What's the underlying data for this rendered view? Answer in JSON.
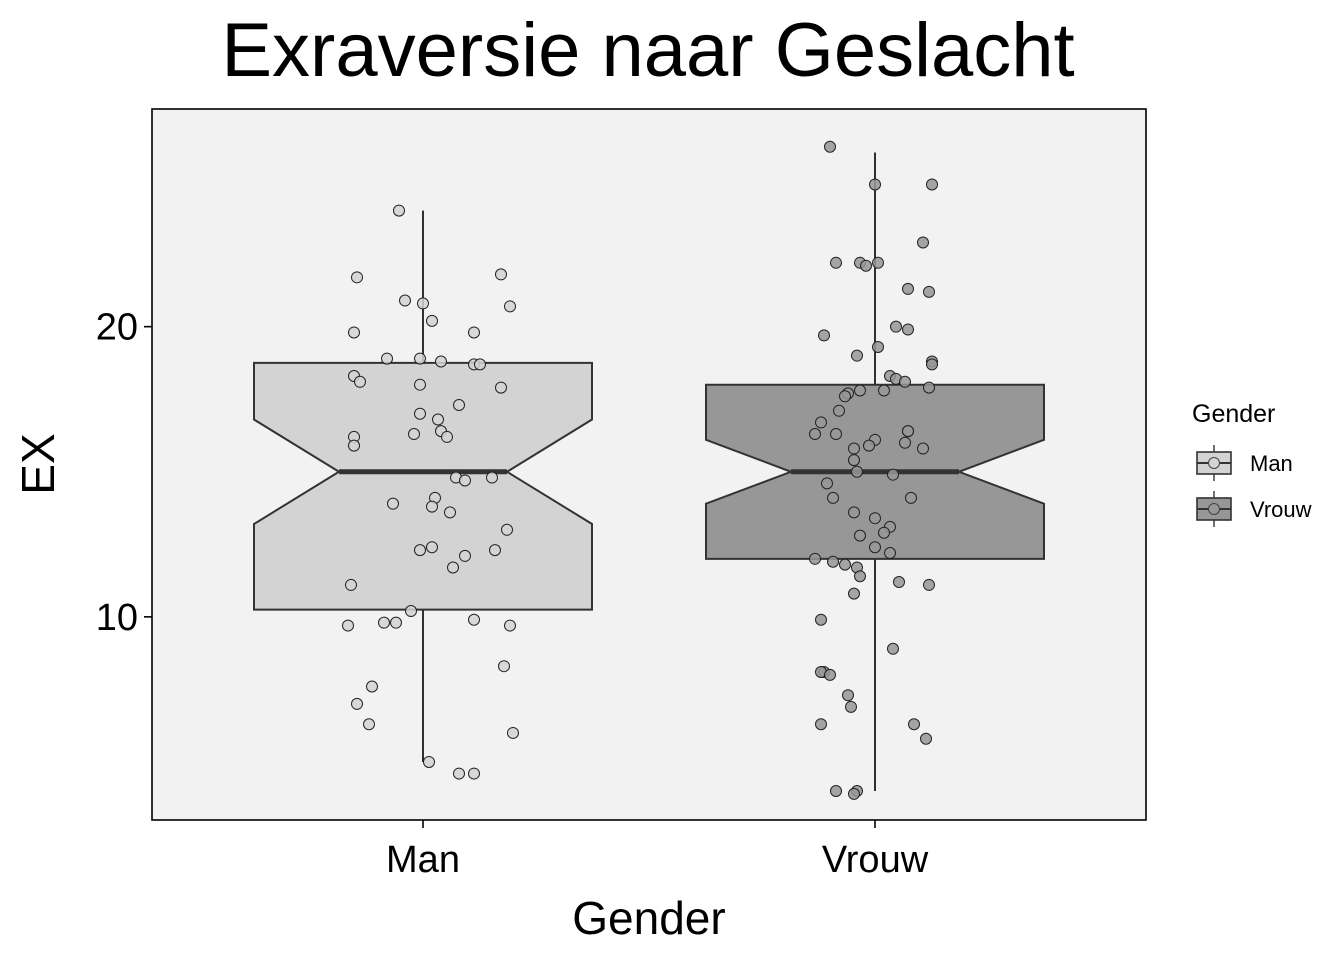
{
  "chart_data": {
    "type": "boxplot",
    "title": "Exraversie naar Geslacht",
    "xlabel": "Gender",
    "ylabel": "EX",
    "categories": [
      "Man",
      "Vrouw"
    ],
    "yticks": [
      10,
      20
    ],
    "ylim": [
      3.0,
      27.5
    ],
    "notched": true,
    "grid": false,
    "legend": {
      "title": "Gender",
      "placement": "right",
      "entries": [
        "Man",
        "Vrouw"
      ]
    },
    "colors": {
      "Man": "#d3d3d3",
      "Vrouw": "#979797",
      "panel": "#f2f2f2",
      "line": "#333333"
    },
    "boxes": [
      {
        "name": "Man",
        "whisker_low": 5.0,
        "q1": 10.25,
        "median": 15.0,
        "q3": 18.75,
        "whisker_high": 24.0,
        "notch_low": 13.2,
        "notch_high": 16.8
      },
      {
        "name": "Vrouw",
        "whisker_low": 4.0,
        "q1": 12.0,
        "median": 15.0,
        "q3": 18.0,
        "whisker_high": 26.0,
        "notch_low": 13.9,
        "notch_high": 16.1
      }
    ],
    "points": [
      {
        "name": "Man",
        "values": [
          24.0,
          21.7,
          21.8,
          20.8,
          20.9,
          20.7,
          20.2,
          19.8,
          19.8,
          18.9,
          18.9,
          18.8,
          18.7,
          18.7,
          18.3,
          18.1,
          18.0,
          17.9,
          17.3,
          17.0,
          16.8,
          16.4,
          16.3,
          16.2,
          16.2,
          15.9,
          14.8,
          14.7,
          14.8,
          14.1,
          13.9,
          13.8,
          13.6,
          13.0,
          12.4,
          12.3,
          12.3,
          12.1,
          11.7,
          11.1,
          10.2,
          9.9,
          9.8,
          9.8,
          9.7,
          9.7,
          8.3,
          7.6,
          7.0,
          6.3,
          6.0,
          5.0,
          4.6,
          4.6
        ],
        "jitter": [
          -0.08,
          -0.22,
          0.26,
          0.0,
          -0.06,
          0.29,
          0.03,
          -0.23,
          0.17,
          -0.12,
          -0.01,
          0.06,
          0.17,
          0.19,
          -0.23,
          -0.21,
          -0.01,
          0.26,
          0.12,
          -0.01,
          0.05,
          0.06,
          -0.03,
          -0.23,
          0.08,
          -0.23,
          0.11,
          0.14,
          0.23,
          0.04,
          -0.1,
          0.03,
          0.09,
          0.28,
          0.03,
          0.24,
          -0.01,
          0.14,
          0.1,
          -0.24,
          -0.04,
          0.17,
          -0.13,
          -0.09,
          0.29,
          -0.25,
          0.27,
          -0.17,
          -0.22,
          -0.18,
          0.3,
          0.02,
          0.12,
          0.17
        ]
      },
      {
        "name": "Vrouw",
        "values": [
          26.2,
          24.9,
          24.9,
          22.9,
          22.2,
          22.2,
          22.2,
          22.1,
          21.3,
          21.2,
          20.0,
          19.9,
          19.7,
          19.3,
          19.0,
          18.8,
          18.7,
          18.3,
          18.2,
          18.1,
          17.9,
          17.8,
          17.8,
          17.7,
          17.6,
          17.1,
          16.7,
          16.4,
          16.4,
          16.3,
          16.3,
          16.1,
          16.0,
          15.9,
          15.8,
          15.8,
          15.4,
          15.0,
          14.9,
          14.6,
          14.1,
          14.1,
          13.6,
          13.4,
          13.1,
          12.9,
          12.8,
          12.4,
          12.2,
          12.0,
          11.9,
          11.8,
          11.7,
          11.4,
          11.2,
          11.1,
          10.8,
          9.9,
          8.9,
          8.1,
          8.1,
          8.0,
          7.3,
          6.9,
          6.3,
          6.3,
          5.8,
          4.0,
          4.0,
          3.9
        ],
        "jitter": [
          -0.15,
          0.19,
          0.0,
          0.16,
          -0.13,
          -0.05,
          0.01,
          -0.03,
          0.11,
          0.18,
          0.07,
          0.11,
          -0.17,
          0.01,
          -0.06,
          0.19,
          0.19,
          0.05,
          0.07,
          0.1,
          0.18,
          -0.05,
          0.03,
          -0.09,
          -0.1,
          -0.12,
          -0.18,
          0.11,
          0.11,
          -0.2,
          -0.13,
          0.0,
          0.1,
          -0.02,
          -0.07,
          0.16,
          -0.07,
          -0.06,
          0.06,
          -0.16,
          -0.14,
          0.12,
          -0.07,
          0.0,
          0.05,
          0.03,
          -0.05,
          0.0,
          0.05,
          -0.2,
          -0.14,
          -0.1,
          -0.06,
          -0.05,
          0.08,
          0.18,
          -0.07,
          -0.18,
          0.06,
          -0.17,
          -0.18,
          -0.15,
          -0.09,
          -0.08,
          0.13,
          -0.18,
          0.17,
          -0.13,
          -0.06,
          -0.07
        ]
      }
    ]
  }
}
